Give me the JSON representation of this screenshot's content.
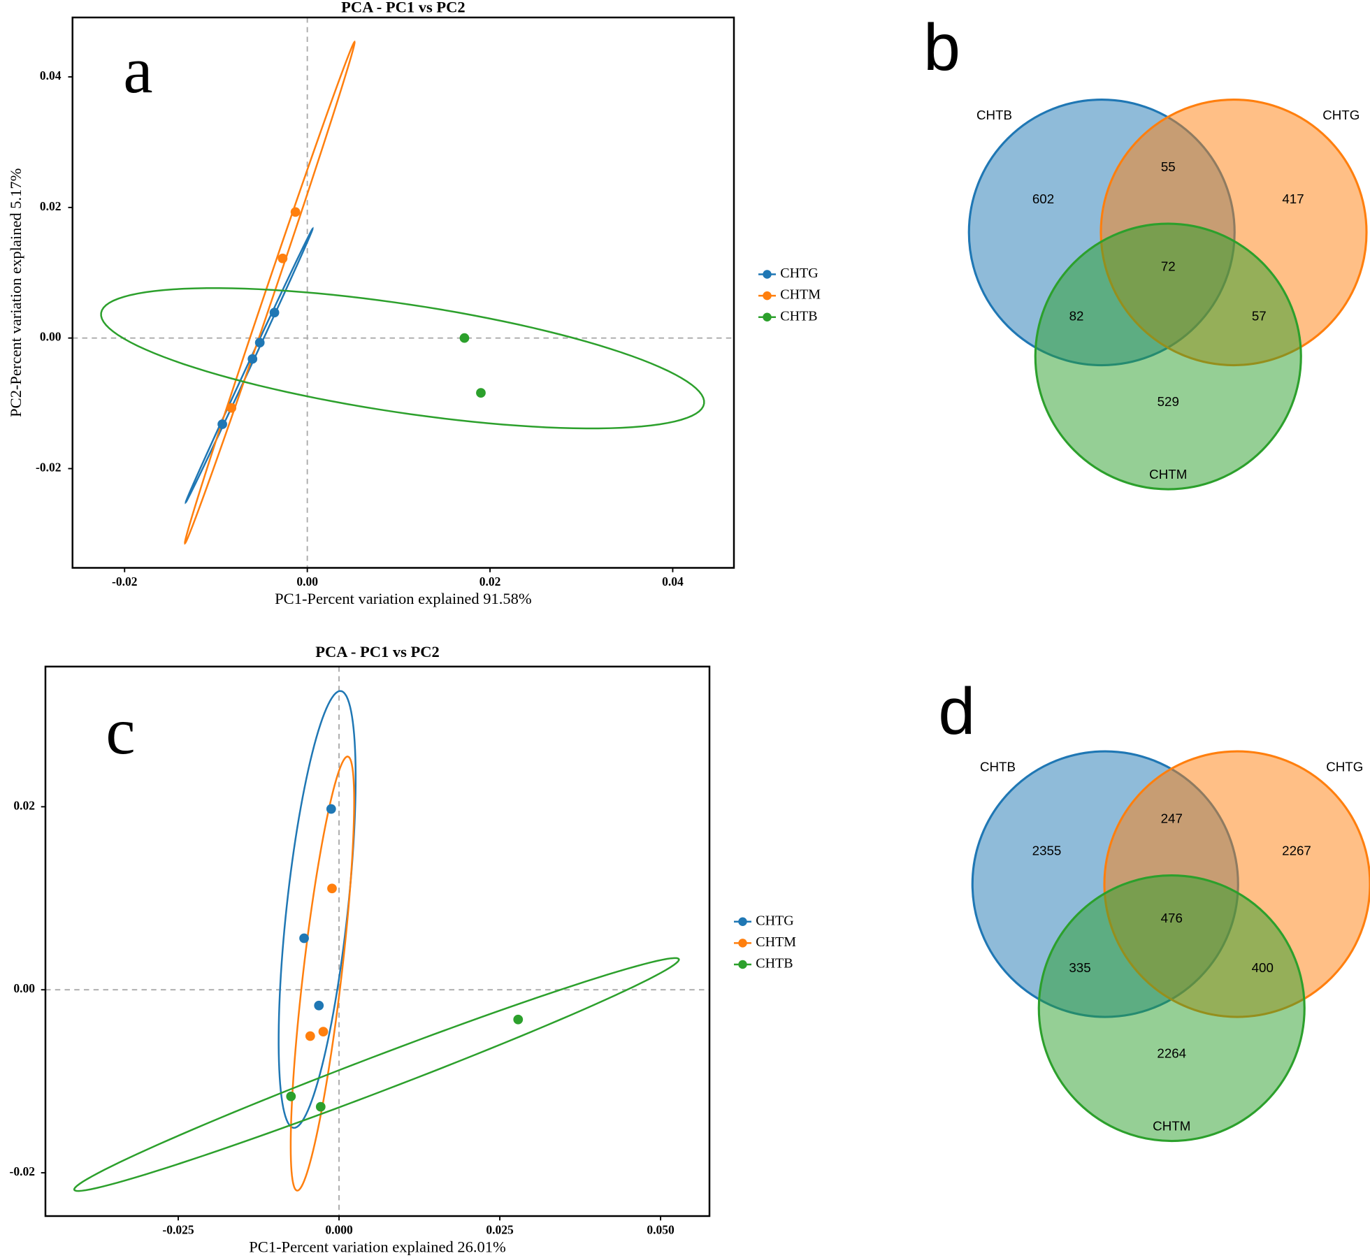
{
  "chart_data": [
    {
      "type": "scatter",
      "panel": "a",
      "title": "PCA - PC1 vs PC2",
      "x_label": "PC1-Percent variation explained 91.58%",
      "y_label": "PC2-Percent variation explained 5.17%",
      "xlim": [
        -0.0257,
        0.0467
      ],
      "ylim": [
        -0.0352,
        0.0491
      ],
      "xticks": [
        -0.02,
        {
          "value": 0,
          "label": "0.00"
        },
        0.02,
        0.04
      ],
      "yticks": [
        -0.02,
        {
          "value": 0,
          "label": "0.00"
        },
        0.02,
        0.04
      ],
      "series": [
        {
          "name": "CHTG",
          "color": "#1f77b4",
          "x": [
            -0.0036,
            -0.006,
            -0.0052,
            -0.0093
          ],
          "values": [
            0.0039,
            -0.0032,
            -0.0007,
            -0.0132
          ],
          "ellipse": {
            "center": [
              -0.00636,
              -0.00421
            ],
            "axis1": [
              0.00694,
              0.02094
            ],
            "axis2": [
              0.00017,
              -0.00011
            ]
          }
        },
        {
          "name": "CHTM",
          "color": "#ff7f0e",
          "x": [
            -0.0013,
            -0.0027,
            -0.0083
          ],
          "values": [
            0.0193,
            0.0122,
            -0.0107
          ],
          "ellipse": {
            "center": [
              -0.00411,
              0.00696
            ],
            "axis1": [
              0.00928,
              0.03839
            ],
            "axis2": [
              0.00045,
              -0.00021
            ]
          }
        },
        {
          "name": "CHTB",
          "color": "#2ca02c",
          "x": [
            0.0172,
            0.019
          ],
          "values": [
            0.0,
            -0.0084
          ],
          "ellipse": {
            "center": [
              0.01043,
              -0.0031
            ],
            "axis1": [
              0.033,
              -0.0065
            ],
            "axis2": [
              -0.00086,
              0.00856
            ]
          }
        }
      ]
    },
    {
      "type": "venn",
      "panel": "b",
      "sets": [
        {
          "name": "CHTB",
          "color": "#1f77b4"
        },
        {
          "name": "CHTG",
          "color": "#ff7f0e"
        },
        {
          "name": "CHTM",
          "color": "#2ca02c"
        }
      ],
      "regions": [
        {
          "sets": [
            "CHTB"
          ],
          "value": 602
        },
        {
          "sets": [
            "CHTG"
          ],
          "value": 417
        },
        {
          "sets": [
            "CHTB",
            "CHTG"
          ],
          "value": 55
        },
        {
          "sets": [
            "CHTB",
            "CHTG",
            "CHTM"
          ],
          "value": 72
        },
        {
          "sets": [
            "CHTB",
            "CHTM"
          ],
          "value": 82
        },
        {
          "sets": [
            "CHTG",
            "CHTM"
          ],
          "value": 57
        },
        {
          "sets": [
            "CHTM"
          ],
          "value": 529
        }
      ]
    },
    {
      "type": "scatter",
      "panel": "c",
      "title": "PCA - PC1 vs PC2",
      "x_label": "PC1-Percent variation explained 26.01%",
      "xlim": [
        -0.04565,
        0.0576
      ],
      "ylim": [
        -0.02473,
        0.03532
      ],
      "xticks": [
        -0.025,
        {
          "value": 0,
          "label": "0.000"
        },
        0.025,
        {
          "value": 0.05,
          "label": "0.050"
        }
      ],
      "yticks": [
        -0.02,
        {
          "value": 0,
          "label": "0.00"
        },
        0.02
      ],
      "series": [
        {
          "name": "CHTG",
          "color": "#1f77b4",
          "x": [
            -0.00122,
            -0.00543,
            -0.00313
          ],
          "values": [
            0.01976,
            0.00563,
            -0.00172
          ],
          "ellipse": {
            "center": [
              -0.0034,
              0.00878
            ],
            "axis1": [
              0.00367,
              0.02387
            ],
            "axis2": [
              0.00473,
              -0.00036
            ]
          }
        },
        {
          "name": "CHTM",
          "color": "#ff7f0e",
          "x": [
            -0.00109,
            -0.00448,
            -0.00245
          ],
          "values": [
            0.01107,
            -0.00506,
            -0.00458
          ],
          "ellipse": {
            "center": [
              -0.00258,
              0.00177
            ],
            "axis1": [
              0.00394,
              0.02372
            ],
            "axis2": [
              0.00297,
              -0.00024
            ]
          }
        },
        {
          "name": "CHTB",
          "color": "#2ca02c",
          "x": [
            0.02785,
            -0.00747,
            -0.00285
          ],
          "values": [
            -0.00325,
            -0.01165,
            -0.01279
          ],
          "ellipse": {
            "center": [
              0.00584,
              -0.00926
            ],
            "axis1": [
              0.04701,
              0.0126
            ],
            "axis2": [
              -0.00096,
              0.00179
            ]
          }
        }
      ]
    },
    {
      "type": "venn",
      "panel": "d",
      "sets": [
        {
          "name": "CHTB",
          "color": "#1f77b4"
        },
        {
          "name": "CHTG",
          "color": "#ff7f0e"
        },
        {
          "name": "CHTM",
          "color": "#2ca02c"
        }
      ],
      "regions": [
        {
          "sets": [
            "CHTB"
          ],
          "value": 2355
        },
        {
          "sets": [
            "CHTG"
          ],
          "value": 2267
        },
        {
          "sets": [
            "CHTB",
            "CHTG"
          ],
          "value": 247
        },
        {
          "sets": [
            "CHTB",
            "CHTG",
            "CHTM"
          ],
          "value": 476
        },
        {
          "sets": [
            "CHTB",
            "CHTM"
          ],
          "value": 335
        },
        {
          "sets": [
            "CHTG",
            "CHTM"
          ],
          "value": 400
        },
        {
          "sets": [
            "CHTM"
          ],
          "value": 2264
        }
      ]
    }
  ]
}
